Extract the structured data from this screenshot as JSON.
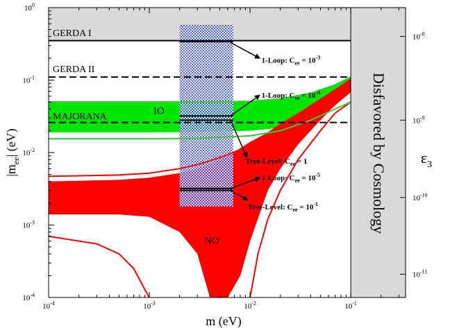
{
  "chart_data": {
    "type": "line",
    "title": "",
    "xlabel": "m (eV)",
    "ylabel_main": "|m",
    "ylabel_sub": "ee",
    "ylabel_close": "| (eV)",
    "right_axis_label": "ε",
    "right_axis_label_sub": "3",
    "x_scale": "log",
    "y_scale": "log",
    "xlim": [
      0.0001,
      0.35
    ],
    "ylim": [
      0.0001,
      1
    ],
    "x_ticks": [
      {
        "value": 0.0001,
        "base": "10",
        "exp": "-4"
      },
      {
        "value": 0.001,
        "base": "10",
        "exp": "-3"
      },
      {
        "value": 0.01,
        "base": "10",
        "exp": "-2"
      },
      {
        "value": 0.1,
        "base": "10",
        "exp": "-1"
      }
    ],
    "y_ticks": [
      {
        "value": 0.0001,
        "base": "10",
        "exp": "-4"
      },
      {
        "value": 0.001,
        "base": "10",
        "exp": "-3"
      },
      {
        "value": 0.01,
        "base": "10",
        "exp": "-2"
      },
      {
        "value": 0.1,
        "base": "10",
        "exp": "-1"
      },
      {
        "value": 1,
        "base": "10",
        "exp": "0"
      }
    ],
    "right_ticks": [
      {
        "y_value": 0.4,
        "base": "10",
        "exp": "-8"
      },
      {
        "y_value": 0.028,
        "base": "10",
        "exp": "-9"
      },
      {
        "y_value": 0.0024,
        "base": "10",
        "exp": "-10"
      },
      {
        "y_value": 0.00021,
        "base": "10",
        "exp": "-11"
      }
    ],
    "experiment_limits": [
      {
        "name": "GERDA I",
        "value": 0.35,
        "style": "solid"
      },
      {
        "name": "GERDA II",
        "value": 0.11,
        "style": "dashed"
      },
      {
        "name": "MAJORANA",
        "value": 0.026,
        "style": "dashed"
      }
    ],
    "disfavored_region": {
      "x_from": 0.1,
      "label": "Disfavored by Cosmology",
      "color": "#d9d9d9"
    },
    "excluded_top": {
      "y_from": 0.35,
      "color": "#d9d9d9"
    },
    "regions": [
      {
        "name": "IO",
        "color": "#00e600",
        "x": [
          0.0001,
          0.001,
          0.003,
          0.01,
          0.02,
          0.04,
          0.07,
          0.1
        ],
        "upper": [
          0.049,
          0.049,
          0.049,
          0.05,
          0.054,
          0.065,
          0.085,
          0.11
        ],
        "lower": [
          0.019,
          0.019,
          0.0192,
          0.02,
          0.022,
          0.03,
          0.048,
          0.07
        ]
      },
      {
        "name": "NO",
        "color": "#ff0000",
        "x": [
          0.0001,
          0.0005,
          0.001,
          0.002,
          0.003,
          0.004,
          0.005,
          0.006,
          0.008,
          0.01,
          0.015,
          0.02,
          0.03,
          0.05,
          0.07,
          0.1
        ],
        "upper": [
          0.004,
          0.0042,
          0.0045,
          0.0052,
          0.006,
          0.007,
          0.008,
          0.009,
          0.0115,
          0.014,
          0.019,
          0.025,
          0.035,
          0.055,
          0.075,
          0.105
        ],
        "lower": [
          0.0014,
          0.0014,
          0.0013,
          0.0008,
          0.0004,
          0.0001,
          0.0001,
          0.0001,
          0.0002,
          0.0006,
          0.003,
          0.006,
          0.013,
          0.028,
          0.045,
          0.068
        ]
      }
    ],
    "boundary_lines": [
      {
        "name": "NO upper boundary",
        "color": "#ff0000",
        "x": [
          0.0001,
          0.0005,
          0.001,
          0.002,
          0.003,
          0.005,
          0.008,
          0.01,
          0.02,
          0.03,
          0.05,
          0.1
        ],
        "y": [
          0.0047,
          0.0049,
          0.0052,
          0.006,
          0.0068,
          0.0085,
          0.011,
          0.013,
          0.024,
          0.034,
          0.054,
          0.1
        ]
      },
      {
        "name": "NO lower boundary left",
        "color": "#ff0000",
        "x": [
          0.0001,
          0.0003,
          0.0005,
          0.0007,
          0.0009,
          0.001
        ],
        "y": [
          0.0007,
          0.00055,
          0.0004,
          0.00025,
          0.00013,
          0.0001
        ]
      },
      {
        "name": "NO lower boundary right",
        "color": "#ff0000",
        "x": [
          0.01,
          0.012,
          0.015,
          0.02,
          0.03,
          0.05,
          0.07,
          0.1
        ],
        "y": [
          0.0001,
          0.0004,
          0.0012,
          0.003,
          0.008,
          0.02,
          0.035,
          0.05
        ]
      },
      {
        "name": "IO upper edge line",
        "color": "#33cc33",
        "x": [
          0.0001,
          0.001,
          0.003,
          0.01,
          0.02,
          0.04,
          0.07,
          0.1
        ],
        "y": [
          0.05,
          0.05,
          0.05,
          0.051,
          0.055,
          0.066,
          0.086,
          0.11
        ]
      },
      {
        "name": "IO lower line",
        "color": "#33cc33",
        "x": [
          0.0001,
          0.001,
          0.003,
          0.01,
          0.02,
          0.04,
          0.07,
          0.1
        ],
        "y": [
          0.0155,
          0.0155,
          0.0157,
          0.017,
          0.02,
          0.028,
          0.04,
          0.05
        ]
      }
    ],
    "highlight_band": {
      "x_range": [
        0.002,
        0.0068
      ],
      "y_range": [
        0.0018,
        0.58
      ],
      "color": "#2233dd"
    },
    "marker_lines": [
      {
        "name": "1-Loop: C_ee = 10^-3",
        "y": 0.34
      },
      {
        "name": "1-Loop: C_ee = 10^-4",
        "y": 0.032
      },
      {
        "name": "Tree-Level: C_ee = 1",
        "y": 0.028
      },
      {
        "name": "1-Loop: C_ee = 10^-5",
        "y": 0.0032
      },
      {
        "name": "Tree-Level: C_ee = 10^-1",
        "y": 0.003
      }
    ],
    "annotations": [
      {
        "prefix": "1-Loop: C",
        "sub": "ee",
        "mid": " = 10",
        "sup": "-3",
        "label_x": 0.013,
        "label_y": 0.19,
        "arrow_from": [
          0.0064,
          0.33
        ],
        "arrow_to": [
          0.0125,
          0.2
        ]
      },
      {
        "prefix": "1-Loop: C",
        "sub": "ee",
        "mid": " = 10",
        "sup": "-4",
        "label_x": 0.013,
        "label_y": 0.062,
        "arrow_from": [
          0.0064,
          0.032
        ],
        "arrow_to": [
          0.0125,
          0.062
        ]
      },
      {
        "prefix": "Tree-Level: C",
        "sub": "ee",
        "mid": " = 1",
        "sup": "",
        "label_x": 0.009,
        "label_y": 0.0077,
        "arrow_from": [
          0.0064,
          0.028
        ],
        "arrow_to": [
          0.0093,
          0.0086
        ]
      },
      {
        "prefix": "1-Loop: C",
        "sub": "ee",
        "mid": " = 10",
        "sup": "-5",
        "label_x": 0.013,
        "label_y": 0.0045,
        "arrow_from": [
          0.0064,
          0.0032
        ],
        "arrow_to": [
          0.0125,
          0.0045
        ]
      },
      {
        "prefix": "Tree-Level: C",
        "sub": "ee",
        "mid": " = 10",
        "sup": "-1",
        "label_x": 0.0095,
        "label_y": 0.0018,
        "arrow_from": [
          0.0064,
          0.003
        ],
        "arrow_to": [
          0.0095,
          0.0022
        ]
      }
    ],
    "region_labels": [
      {
        "text": "IO",
        "x": 0.0011,
        "y": 0.034
      },
      {
        "text": "NO",
        "x": 0.0035,
        "y": 0.00055
      }
    ]
  }
}
